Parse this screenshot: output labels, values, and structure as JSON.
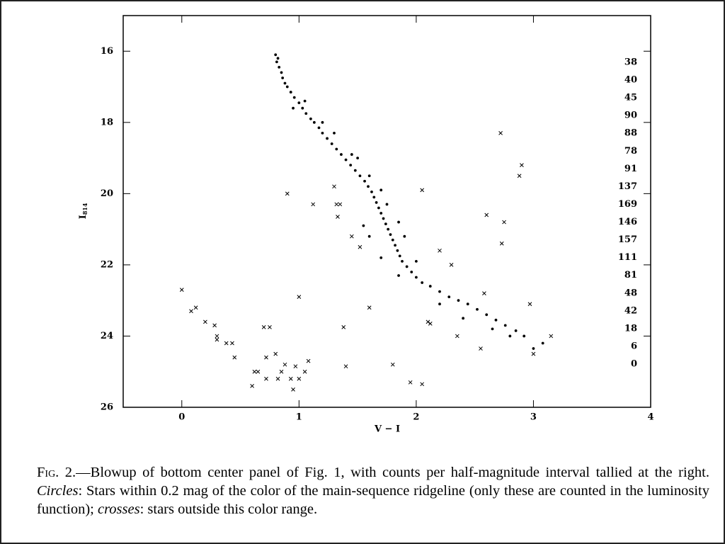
{
  "chart_data": {
    "type": "scatter",
    "xlabel": "V − I",
    "ylabel": {
      "main": "I",
      "sub": "814"
    },
    "xlim": [
      -0.5,
      4
    ],
    "ylim": [
      26,
      15
    ],
    "xticks": [
      0,
      1,
      2,
      3,
      4
    ],
    "yticks": [
      16,
      18,
      20,
      22,
      24,
      26
    ],
    "counts": [
      "38",
      "40",
      "45",
      "90",
      "88",
      "78",
      "91",
      "137",
      "169",
      "146",
      "157",
      "111",
      "81",
      "48",
      "42",
      "18",
      "6",
      "0"
    ],
    "series": [
      {
        "marker": "circle",
        "color": "#000000",
        "x": [
          0.8,
          0.82,
          0.81,
          0.83,
          0.85,
          0.86,
          0.88,
          0.9,
          0.93,
          0.96,
          1.0,
          1.03,
          1.06,
          1.1,
          1.13,
          1.17,
          1.2,
          1.24,
          1.28,
          1.32,
          1.36,
          1.4,
          1.44,
          1.48,
          1.52,
          1.56,
          1.59,
          1.62,
          1.64,
          1.66,
          1.68,
          1.7,
          1.72,
          1.74,
          1.76,
          1.78,
          1.8,
          1.82,
          1.84,
          1.86,
          1.88,
          1.92,
          1.96,
          2.0,
          2.05,
          2.12,
          2.2,
          2.28,
          2.36,
          2.44,
          2.52,
          2.6,
          2.68,
          2.76,
          2.85,
          2.92,
          3.0,
          3.08,
          0.95,
          1.2,
          1.45,
          1.5,
          1.6,
          1.7,
          1.75,
          1.85,
          1.9,
          1.55,
          1.6,
          1.7,
          1.85,
          2.0,
          2.2,
          2.4,
          2.65,
          2.8,
          1.3,
          1.05
        ],
        "y": [
          16.1,
          16.2,
          16.3,
          16.45,
          16.6,
          16.75,
          16.9,
          17.0,
          17.15,
          17.3,
          17.45,
          17.6,
          17.75,
          17.9,
          18.0,
          18.15,
          18.3,
          18.45,
          18.6,
          18.75,
          18.9,
          19.05,
          19.2,
          19.35,
          19.5,
          19.65,
          19.8,
          19.95,
          20.1,
          20.25,
          20.4,
          20.55,
          20.7,
          20.85,
          21.0,
          21.15,
          21.3,
          21.45,
          21.6,
          21.75,
          21.9,
          22.05,
          22.2,
          22.35,
          22.5,
          22.6,
          22.75,
          22.9,
          23.0,
          23.1,
          23.25,
          23.4,
          23.55,
          23.7,
          23.85,
          24.0,
          24.35,
          24.2,
          17.6,
          18.0,
          18.9,
          19.0,
          19.5,
          19.9,
          20.3,
          20.8,
          21.2,
          20.9,
          21.2,
          21.8,
          22.3,
          21.9,
          23.1,
          23.5,
          23.8,
          24.0,
          18.3,
          17.4
        ]
      },
      {
        "marker": "cross",
        "color": "#000000",
        "x": [
          0.0,
          0.08,
          0.12,
          0.2,
          0.28,
          0.3,
          0.3,
          0.38,
          0.43,
          0.45,
          0.6,
          0.62,
          0.65,
          0.72,
          0.72,
          0.7,
          0.75,
          0.8,
          0.82,
          0.85,
          0.88,
          0.93,
          0.95,
          0.97,
          1.0,
          1.05,
          1.08,
          1.0,
          0.9,
          1.12,
          1.3,
          1.32,
          1.35,
          1.33,
          1.45,
          1.52,
          1.38,
          1.4,
          1.6,
          1.8,
          1.95,
          2.05,
          2.05,
          2.2,
          2.3,
          2.1,
          2.12,
          2.35,
          2.55,
          2.58,
          2.72,
          2.6,
          2.75,
          2.73,
          2.88,
          2.9,
          2.97,
          3.0,
          3.15
        ],
        "y": [
          22.7,
          23.3,
          23.2,
          23.6,
          23.7,
          24.0,
          24.1,
          24.2,
          24.2,
          24.6,
          25.4,
          25.0,
          25.0,
          24.6,
          25.2,
          23.75,
          23.75,
          24.5,
          25.2,
          25.0,
          24.8,
          25.2,
          25.5,
          24.85,
          25.2,
          25.0,
          24.7,
          22.9,
          20.0,
          20.3,
          19.8,
          20.3,
          20.3,
          20.65,
          21.2,
          21.5,
          23.75,
          24.85,
          23.2,
          24.8,
          25.3,
          25.35,
          19.9,
          21.6,
          22.0,
          23.6,
          23.65,
          24.0,
          24.35,
          22.8,
          18.3,
          20.6,
          20.8,
          21.4,
          19.5,
          19.2,
          23.1,
          24.5,
          24.0
        ]
      }
    ]
  },
  "caption": [
    "Fig. 2.",
    "—Blowup of bottom center panel of Fig. 1, with counts per half-magnitude interval tallied at the right. ",
    "Circles",
    ": Stars within 0.2 mag of the color of the main-sequence ridgeline (only these are counted in the luminosity function); ",
    "crosses",
    ": stars outside this color range."
  ]
}
